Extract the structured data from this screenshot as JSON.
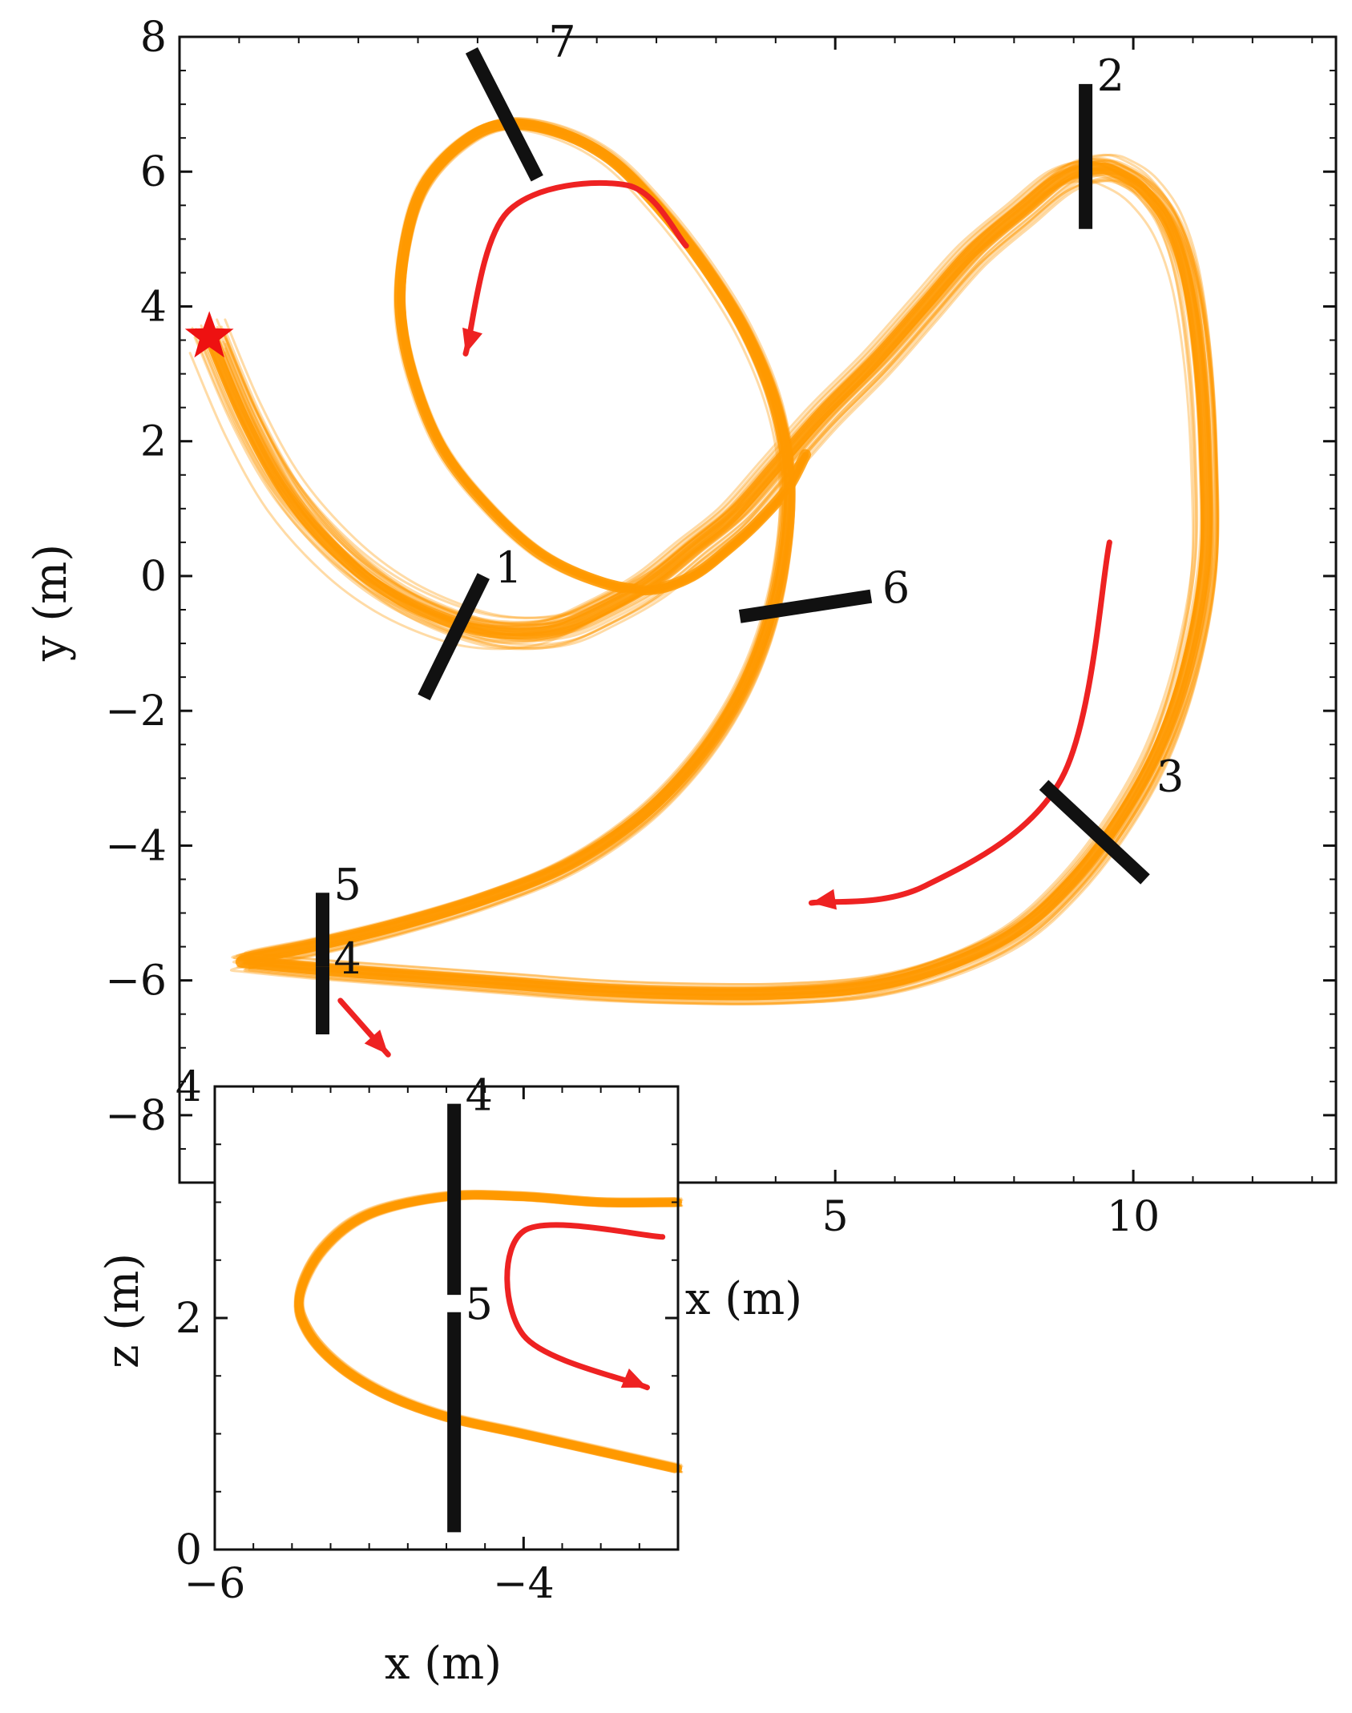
{
  "colors": {
    "trajectory": "#ff9900",
    "arrow": "#ee2222",
    "gate": "#111111",
    "start_marker": "#ee1111",
    "axis": "#111111"
  },
  "chart_data": [
    {
      "type": "line",
      "view": "top-down",
      "xlabel": "x (m)",
      "ylabel": "y (m)",
      "xlim": [
        -6,
        13.4
      ],
      "ylim": [
        -9.0,
        8.0
      ],
      "xticks": [
        5,
        10
      ],
      "xtick_labels": [
        "5",
        "10"
      ],
      "yticks": [
        -8,
        -6,
        -4,
        -2,
        0,
        2,
        4,
        6,
        8
      ],
      "ytick_labels": [
        "−8",
        "−6",
        "−4",
        "−2",
        "0",
        "2",
        "4",
        "6",
        "8"
      ],
      "grid": false,
      "start_marker": {
        "x": -5.5,
        "y": 3.55,
        "symbol": "star"
      },
      "trajectory_count": 40,
      "trajectory": {
        "x": [
          -5.5,
          -4.9,
          -4.2,
          -3.3,
          -2.4,
          -1.4,
          -0.6,
          0.3,
          1.1,
          1.9,
          2.6,
          3.3,
          4.0,
          4.8,
          5.7,
          6.5,
          7.3,
          8.1,
          8.8,
          9.4,
          9.8,
          10.2,
          10.6,
          10.9,
          11.1,
          11.2,
          11.2,
          10.9,
          10.4,
          9.7,
          8.9,
          8.0,
          6.8,
          5.5,
          4.0,
          2.5,
          1.0,
          -0.5,
          -2.0,
          -3.5,
          -4.7,
          -4.9,
          -3.8,
          -2.4,
          -0.9,
          0.5,
          1.7,
          2.6,
          3.3,
          3.8,
          4.1,
          4.2,
          4.0,
          3.5,
          2.8,
          2.0,
          1.2,
          0.3,
          -0.6,
          -1.3,
          -1.9,
          -2.2,
          -2.3,
          -2.1,
          -1.6,
          -0.8,
          0.1,
          1.1,
          1.9,
          2.6,
          3.2,
          3.7,
          4.2,
          4.5
        ],
        "y": [
          3.55,
          2.3,
          1.2,
          0.3,
          -0.3,
          -0.7,
          -0.85,
          -0.8,
          -0.5,
          -0.1,
          0.4,
          0.9,
          1.6,
          2.4,
          3.2,
          4.0,
          4.8,
          5.4,
          5.9,
          6.05,
          5.95,
          5.7,
          5.2,
          4.4,
          3.2,
          1.8,
          0.2,
          -1.3,
          -2.6,
          -3.7,
          -4.6,
          -5.3,
          -5.8,
          -6.1,
          -6.2,
          -6.2,
          -6.15,
          -6.05,
          -5.95,
          -5.85,
          -5.75,
          -5.7,
          -5.5,
          -5.2,
          -4.8,
          -4.3,
          -3.6,
          -2.8,
          -1.9,
          -0.9,
          0.2,
          1.4,
          2.5,
          3.6,
          4.6,
          5.5,
          6.2,
          6.6,
          6.7,
          6.4,
          5.8,
          5.0,
          4.0,
          3.0,
          1.9,
          1.0,
          0.3,
          -0.1,
          -0.2,
          0.0,
          0.4,
          0.8,
          1.3,
          1.8
        ]
      },
      "gates": [
        {
          "label": "1",
          "x1": -1.9,
          "y1": -1.8,
          "x2": -0.9,
          "y2": 0.0
        },
        {
          "label": "2",
          "x1": 9.2,
          "y1": 5.15,
          "x2": 9.2,
          "y2": 7.3
        },
        {
          "label": "3",
          "x1": 8.5,
          "y1": -3.1,
          "x2": 10.2,
          "y2": -4.5
        },
        {
          "label": "4",
          "x1": -3.6,
          "y1": -5.8,
          "x2": -3.6,
          "y2": -6.8
        },
        {
          "label": "5",
          "x1": -3.6,
          "y1": -4.7,
          "x2": -3.6,
          "y2": -5.8
        },
        {
          "label": "6",
          "x1": 3.4,
          "y1": -0.6,
          "x2": 5.6,
          "y2": -0.3
        },
        {
          "label": "7",
          "x1": -1.1,
          "y1": 7.8,
          "x2": 0.0,
          "y2": 5.9
        }
      ],
      "arrows": [
        {
          "points": [
            [
              2.5,
              4.9
            ],
            [
              1.5,
              5.8
            ],
            [
              -0.5,
              5.4
            ],
            [
              -1.2,
              3.3
            ]
          ]
        },
        {
          "points": [
            [
              9.6,
              0.5
            ],
            [
              8.8,
              -3.0
            ],
            [
              6.5,
              -4.6
            ],
            [
              4.6,
              -4.85
            ]
          ]
        },
        {
          "points": [
            [
              -3.3,
              -6.3
            ],
            [
              -2.5,
              -7.1
            ]
          ]
        }
      ]
    },
    {
      "type": "line",
      "view": "side (inset)",
      "xlabel": "x (m)",
      "ylabel": "z (m)",
      "xlim": [
        -6.0,
        -3.0
      ],
      "ylim": [
        0,
        4
      ],
      "xticks": [
        -6,
        -4
      ],
      "xtick_labels": [
        "−6",
        "−4"
      ],
      "yticks": [
        0,
        2,
        4
      ],
      "ytick_labels": [
        "0",
        "2",
        "4"
      ],
      "grid": false,
      "trajectory_count": 40,
      "trajectory": {
        "x": [
          -3.0,
          -3.5,
          -4.0,
          -4.5,
          -5.0,
          -5.3,
          -5.45,
          -5.4,
          -5.2,
          -4.9,
          -4.5,
          -4.0,
          -3.5,
          -3.0
        ],
        "z": [
          3.0,
          3.0,
          3.05,
          3.05,
          2.9,
          2.6,
          2.2,
          1.9,
          1.6,
          1.35,
          1.15,
          1.0,
          0.85,
          0.7
        ]
      },
      "gates": [
        {
          "label": "4",
          "x1": -4.45,
          "y1": 2.2,
          "x2": -4.45,
          "y2": 3.85
        },
        {
          "label": "5",
          "x1": -4.45,
          "y1": 0.15,
          "x2": -4.45,
          "y2": 2.05
        }
      ],
      "arrows": [
        {
          "points": [
            [
              -3.1,
              2.7
            ],
            [
              -4.0,
              2.75
            ],
            [
              -4.0,
              1.85
            ],
            [
              -3.2,
              1.4
            ]
          ]
        }
      ]
    }
  ]
}
